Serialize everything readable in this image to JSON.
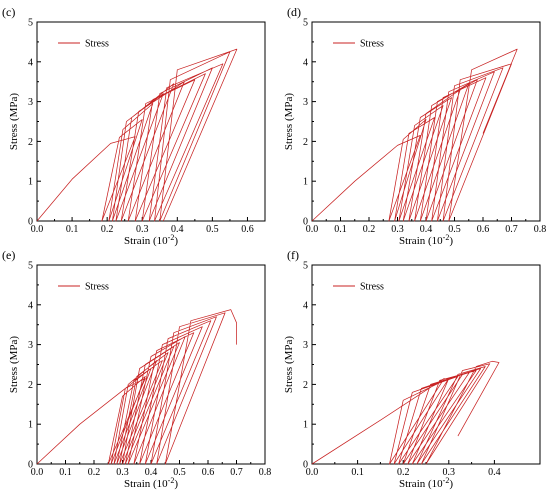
{
  "figure": {
    "line_color": "#c82323",
    "axis_color": "#000000",
    "background": "#ffffff"
  },
  "chart_data": [
    {
      "panel_label": "(c)",
      "type": "line",
      "xlabel": "Strain (10",
      "xlabel_exp": "-2",
      "xlabel_close": ")",
      "ylabel": "Stress (MPa)",
      "xlim": [
        0,
        0.65
      ],
      "ylim": [
        0,
        5
      ],
      "xticks": [
        0.0,
        0.1,
        0.2,
        0.3,
        0.4,
        0.5,
        0.6
      ],
      "yticks": [
        0,
        1,
        2,
        3,
        4,
        5
      ],
      "xtick_labels": [
        "0.0",
        "0.1",
        "0.2",
        "0.3",
        "0.4",
        "0.5",
        "0.6"
      ],
      "ytick_labels": [
        "0",
        "1",
        "2",
        "3",
        "4",
        "5"
      ],
      "legend": {
        "position": "top-left",
        "entries": [
          "Stress"
        ]
      },
      "series": [
        {
          "name": "Stress",
          "x": [
            0,
            0.1,
            0.21,
            0.28,
            0.185,
            0.235,
            0.3,
            0.205,
            0.245,
            0.33,
            0.215,
            0.255,
            0.36,
            0.225,
            0.27,
            0.39,
            0.24,
            0.29,
            0.42,
            0.26,
            0.31,
            0.45,
            0.28,
            0.33,
            0.48,
            0.3,
            0.35,
            0.5,
            0.32,
            0.37,
            0.53,
            0.335,
            0.38,
            0.55,
            0.35,
            0.4,
            0.57,
            0.36
          ],
          "y": [
            0,
            1.05,
            1.95,
            2.12,
            0,
            2.1,
            2.55,
            0,
            2.3,
            2.95,
            0,
            2.5,
            3.2,
            0,
            2.6,
            3.45,
            0,
            2.75,
            3.5,
            0,
            2.95,
            3.55,
            0,
            3.05,
            3.7,
            0,
            3.2,
            3.85,
            0,
            3.35,
            3.95,
            0,
            3.55,
            4.25,
            0,
            3.8,
            4.32,
            0
          ]
        }
      ]
    },
    {
      "panel_label": "(d)",
      "type": "line",
      "xlabel": "Strain (10",
      "xlabel_exp": "-2",
      "xlabel_close": ")",
      "ylabel": "Stress (MPa)",
      "xlim": [
        0,
        0.8
      ],
      "ylim": [
        0,
        5
      ],
      "xticks": [
        0.0,
        0.1,
        0.2,
        0.3,
        0.4,
        0.5,
        0.6,
        0.7,
        0.8
      ],
      "yticks": [
        0,
        1,
        2,
        3,
        4,
        5
      ],
      "xtick_labels": [
        "0.0",
        "0.1",
        "0.2",
        "0.3",
        "0.4",
        "0.5",
        "0.6",
        "0.7",
        "0.8"
      ],
      "ytick_labels": [
        "0",
        "1",
        "2",
        "3",
        "4",
        "5"
      ],
      "legend": {
        "position": "top-left",
        "entries": [
          "Stress"
        ]
      },
      "series": [
        {
          "name": "Stress",
          "x": [
            0,
            0.15,
            0.3,
            0.38,
            0.27,
            0.32,
            0.4,
            0.29,
            0.34,
            0.43,
            0.305,
            0.36,
            0.46,
            0.32,
            0.38,
            0.49,
            0.34,
            0.4,
            0.52,
            0.36,
            0.42,
            0.55,
            0.38,
            0.44,
            0.58,
            0.4,
            0.46,
            0.61,
            0.42,
            0.48,
            0.64,
            0.44,
            0.5,
            0.67,
            0.46,
            0.52,
            0.7,
            0.48,
            0.56,
            0.72,
            0.6
          ],
          "y": [
            0,
            1.0,
            1.9,
            2.15,
            0,
            2.05,
            2.55,
            0,
            2.2,
            2.6,
            0,
            2.4,
            2.9,
            0,
            2.6,
            3.1,
            0,
            2.7,
            3.3,
            0,
            2.9,
            3.45,
            0,
            3.0,
            3.55,
            0,
            3.1,
            3.6,
            0,
            3.25,
            3.75,
            0,
            3.4,
            3.85,
            0,
            3.55,
            3.95,
            0,
            3.8,
            4.32,
            2.2
          ]
        }
      ]
    },
    {
      "panel_label": "(e)",
      "type": "line",
      "xlabel": "Strain (10",
      "xlabel_exp": "-2",
      "xlabel_close": ")",
      "ylabel": "Stress (MPa)",
      "xlim": [
        0,
        0.8
      ],
      "ylim": [
        0,
        5
      ],
      "xticks": [
        0.0,
        0.1,
        0.2,
        0.3,
        0.4,
        0.5,
        0.6,
        0.7,
        0.8
      ],
      "yticks": [
        0,
        1,
        2,
        3,
        4,
        5
      ],
      "xtick_labels": [
        "0.0",
        "0.1",
        "0.2",
        "0.3",
        "0.4",
        "0.5",
        "0.6",
        "0.7",
        "0.8"
      ],
      "ytick_labels": [
        "0",
        "1",
        "2",
        "3",
        "4",
        "5"
      ],
      "legend": {
        "position": "top-left",
        "entries": [
          "Stress"
        ]
      },
      "series": [
        {
          "name": "Stress",
          "x": [
            0,
            0.15,
            0.31,
            0.38,
            0.25,
            0.3,
            0.38,
            0.26,
            0.31,
            0.4,
            0.27,
            0.32,
            0.42,
            0.28,
            0.34,
            0.44,
            0.29,
            0.35,
            0.46,
            0.3,
            0.36,
            0.48,
            0.31,
            0.38,
            0.5,
            0.32,
            0.4,
            0.52,
            0.34,
            0.42,
            0.55,
            0.36,
            0.44,
            0.58,
            0.38,
            0.46,
            0.61,
            0.4,
            0.48,
            0.63,
            0.42,
            0.5,
            0.66,
            0.45,
            0.54,
            0.68,
            0.7,
            0.7
          ],
          "y": [
            0,
            1.0,
            1.9,
            2.15,
            0,
            1.7,
            2.2,
            0,
            1.9,
            2.4,
            0,
            2.0,
            2.6,
            0,
            2.1,
            2.6,
            0,
            2.2,
            2.8,
            0,
            2.4,
            2.95,
            0,
            2.5,
            3.05,
            0,
            2.7,
            3.2,
            0,
            2.85,
            3.3,
            0,
            3.0,
            3.45,
            0,
            3.15,
            3.6,
            0,
            3.3,
            3.7,
            0,
            3.45,
            3.8,
            0,
            3.6,
            3.88,
            3.55,
            3.0
          ]
        }
      ]
    },
    {
      "panel_label": "(f)",
      "type": "line",
      "xlabel": "Strain (10",
      "xlabel_exp": "-2",
      "xlabel_close": ")",
      "ylabel": "Stress (MPa)",
      "xlim": [
        0,
        0.5
      ],
      "ylim": [
        0,
        5
      ],
      "xticks": [
        0.0,
        0.1,
        0.2,
        0.3,
        0.4
      ],
      "yticks": [
        0,
        1,
        2,
        3,
        4,
        5
      ],
      "xtick_labels": [
        "0.0",
        "0.1",
        "0.2",
        "0.3",
        "0.4"
      ],
      "ytick_labels": [
        "0",
        "1",
        "2",
        "3",
        "4",
        "5"
      ],
      "legend": {
        "position": "top-left",
        "entries": [
          "Stress"
        ]
      },
      "series": [
        {
          "name": "Stress",
          "x": [
            0,
            0.15,
            0.29,
            0.17,
            0.2,
            0.3,
            0.18,
            0.22,
            0.32,
            0.19,
            0.24,
            0.33,
            0.2,
            0.26,
            0.345,
            0.21,
            0.28,
            0.36,
            0.22,
            0.3,
            0.37,
            0.23,
            0.32,
            0.38,
            0.24,
            0.33,
            0.39,
            0.25,
            0.36,
            0.395,
            0.41,
            0.32
          ],
          "y": [
            0,
            1.1,
            2.15,
            0,
            1.6,
            2.15,
            0,
            1.8,
            2.2,
            0,
            1.9,
            2.25,
            0,
            2.0,
            2.3,
            0,
            2.1,
            2.35,
            0,
            2.15,
            2.4,
            0,
            2.25,
            2.45,
            0,
            2.35,
            2.52,
            0,
            2.45,
            2.58,
            2.55,
            0.7
          ]
        }
      ]
    }
  ]
}
